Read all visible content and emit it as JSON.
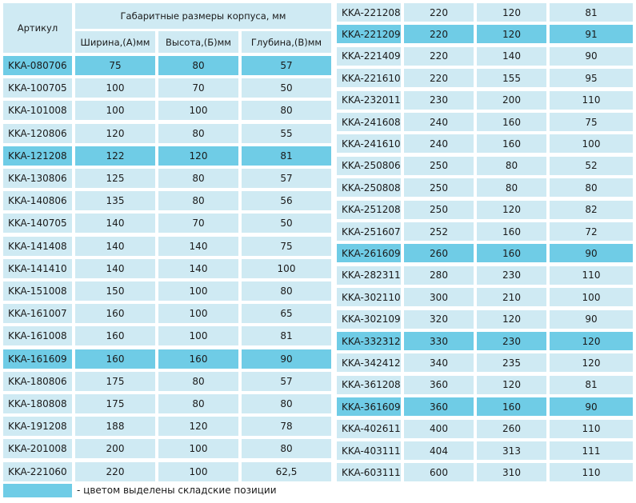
{
  "header": {
    "article": "Артикул",
    "group": "Габаритные размеры корпуса, мм",
    "width": "Ширина,(А)мм",
    "height": "Высота,(Б)мм",
    "depth": "Глубина,(В)мм"
  },
  "left_rows": [
    {
      "article": "KKA-080706",
      "w": "75",
      "h": "80",
      "d": "57",
      "stock": true
    },
    {
      "article": "KKA-100705",
      "w": "100",
      "h": "70",
      "d": "50",
      "stock": false
    },
    {
      "article": "KKA-101008",
      "w": "100",
      "h": "100",
      "d": "80",
      "stock": false
    },
    {
      "article": "KKA-120806",
      "w": "120",
      "h": "80",
      "d": "55",
      "stock": false
    },
    {
      "article": "KKA-121208",
      "w": "122",
      "h": "120",
      "d": "81",
      "stock": true
    },
    {
      "article": "KKA-130806",
      "w": "125",
      "h": "80",
      "d": "57",
      "stock": false
    },
    {
      "article": "KKA-140806",
      "w": "135",
      "h": "80",
      "d": "56",
      "stock": false
    },
    {
      "article": "KKA-140705",
      "w": "140",
      "h": "70",
      "d": "50",
      "stock": false
    },
    {
      "article": "KKA-141408",
      "w": "140",
      "h": "140",
      "d": "75",
      "stock": false
    },
    {
      "article": "KKA-141410",
      "w": "140",
      "h": "140",
      "d": "100",
      "stock": false
    },
    {
      "article": "KKA-151008",
      "w": "150",
      "h": "100",
      "d": "80",
      "stock": false
    },
    {
      "article": "KKA-161007",
      "w": "160",
      "h": "100",
      "d": "65",
      "stock": false
    },
    {
      "article": "KKA-161008",
      "w": "160",
      "h": "100",
      "d": "81",
      "stock": false
    },
    {
      "article": "KKA-161609",
      "w": "160",
      "h": "160",
      "d": "90",
      "stock": true
    },
    {
      "article": "KKA-180806",
      "w": "175",
      "h": "80",
      "d": "57",
      "stock": false
    },
    {
      "article": "KKA-180808",
      "w": "175",
      "h": "80",
      "d": "80",
      "stock": false
    },
    {
      "article": "KKA-191208",
      "w": "188",
      "h": "120",
      "d": "78",
      "stock": false
    },
    {
      "article": "KKA-201008",
      "w": "200",
      "h": "100",
      "d": "80",
      "stock": false
    },
    {
      "article": "KKA-221060",
      "w": "220",
      "h": "100",
      "d": "62,5",
      "stock": false
    }
  ],
  "right_rows": [
    {
      "article": "KKA-221208",
      "w": "220",
      "h": "120",
      "d": "81",
      "stock": false
    },
    {
      "article": "KKA-221209",
      "w": "220",
      "h": "120",
      "d": "91",
      "stock": true
    },
    {
      "article": "KKA-221409",
      "w": "220",
      "h": "140",
      "d": "90",
      "stock": false
    },
    {
      "article": "KKA-221610",
      "w": "220",
      "h": "155",
      "d": "95",
      "stock": false
    },
    {
      "article": "KKA-232011",
      "w": "230",
      "h": "200",
      "d": "110",
      "stock": false
    },
    {
      "article": "KKA-241608",
      "w": "240",
      "h": "160",
      "d": "75",
      "stock": false
    },
    {
      "article": "KKA-241610",
      "w": "240",
      "h": "160",
      "d": "100",
      "stock": false
    },
    {
      "article": "KKA-250806",
      "w": "250",
      "h": "80",
      "d": "52",
      "stock": false
    },
    {
      "article": "KKA-250808",
      "w": "250",
      "h": "80",
      "d": "80",
      "stock": false
    },
    {
      "article": "KKA-251208",
      "w": "250",
      "h": "120",
      "d": "82",
      "stock": false
    },
    {
      "article": "KKA-251607",
      "w": "252",
      "h": "160",
      "d": "72",
      "stock": false
    },
    {
      "article": "KKA-261609",
      "w": "260",
      "h": "160",
      "d": "90",
      "stock": true
    },
    {
      "article": "KKA-282311",
      "w": "280",
      "h": "230",
      "d": "110",
      "stock": false
    },
    {
      "article": "KKA-302110",
      "w": "300",
      "h": "210",
      "d": "100",
      "stock": false
    },
    {
      "article": "KKA-302109",
      "w": "320",
      "h": "120",
      "d": "90",
      "stock": false
    },
    {
      "article": "KKA-332312",
      "w": "330",
      "h": "230",
      "d": "120",
      "stock": true
    },
    {
      "article": "KKA-342412",
      "w": "340",
      "h": "235",
      "d": "120",
      "stock": false
    },
    {
      "article": "KKA-361208",
      "w": "360",
      "h": "120",
      "d": "81",
      "stock": false
    },
    {
      "article": "KKA-361609",
      "w": "360",
      "h": "160",
      "d": "90",
      "stock": true
    },
    {
      "article": "KKA-402611",
      "w": "400",
      "h": "260",
      "d": "110",
      "stock": false
    },
    {
      "article": "KKA-403111",
      "w": "404",
      "h": "313",
      "d": "111",
      "stock": false
    },
    {
      "article": "KKA-603111",
      "w": "600",
      "h": "310",
      "d": "110",
      "stock": false
    }
  ],
  "legend": {
    "text": "- цветом выделены складские позиции",
    "stock_color": "#6fcce6",
    "row_color": "#cfeaf3"
  }
}
